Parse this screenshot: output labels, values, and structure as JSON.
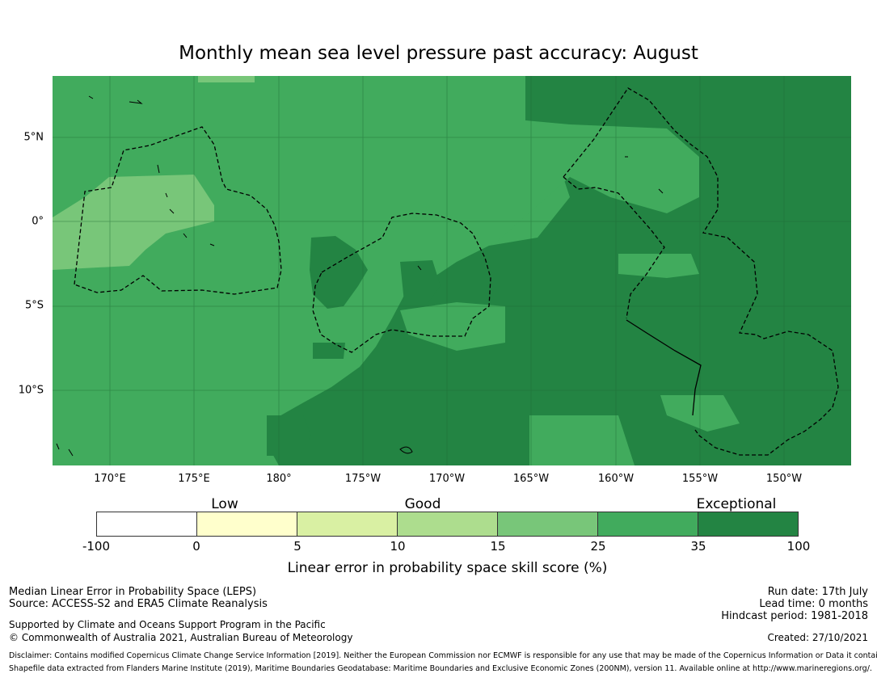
{
  "title": "Monthly mean sea level pressure past accuracy: August",
  "map": {
    "lon_labels": [
      "170°E",
      "175°E",
      "180°",
      "175°W",
      "170°W",
      "165°W",
      "160°W",
      "155°W",
      "150°W"
    ],
    "lat_labels": [
      "5°N",
      "0°",
      "5°S",
      "10°S"
    ],
    "colors": {
      "land_outline": "#000000",
      "band_15_25": "#7bc87c",
      "band_25_35": "#41ab5d",
      "band_35_100": "#238443"
    }
  },
  "legend": {
    "categories": [
      "Low",
      "Good",
      "Exceptional"
    ],
    "ticks": [
      "-100",
      "0",
      "5",
      "10",
      "15",
      "25",
      "35",
      "100"
    ],
    "colors": [
      "#ffffff",
      "#ffffcc",
      "#d9f0a3",
      "#addd8e",
      "#78c679",
      "#41ab5d",
      "#238443"
    ],
    "label": "Linear error in probability space skill score (%)"
  },
  "footer": {
    "method": "Median Linear Error in Probability Space (LEPS)",
    "source": "Source: ACCESS-S2 and ERA5 Climate Reanalysis",
    "supported": "Supported by Climate and Oceans Support Program in the Pacific",
    "copyright": "© Commonwealth of Australia 2021, Australian Bureau of Meteorology",
    "run_date": "Run date: 17th July",
    "lead_time": "Lead time: 0 months",
    "hindcast": "Hindcast period: 1981-2018",
    "created": "Created: 27/10/2021",
    "disclaimer": "Disclaimer: Contains modified Copernicus Climate Change Service Information [2019]. Neither the European Commission nor ECMWF is responsible for any use that may be made of the Copernicus Information or Data it contains.",
    "shapefile": "Shapefile data extracted from Flanders Marine Institute (2019), Maritime Boundaries Geodatabase: Maritime Boundaries and Exclusive Economic Zones (200NM), version 11. Available online at http://www.marineregions.org/."
  }
}
